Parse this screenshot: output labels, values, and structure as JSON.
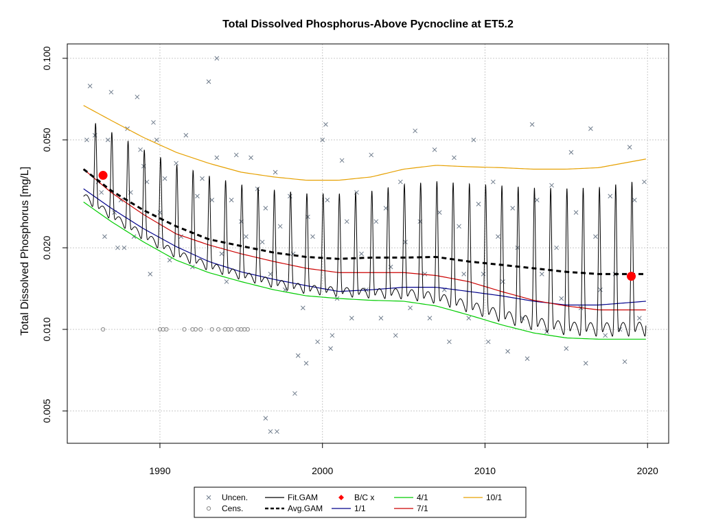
{
  "chart_data": {
    "type": "scatter",
    "title": "Total Dissolved Phosphorus-Above Pycnocline at ET5.2",
    "xlabel": "",
    "ylabel": "Total Dissolved Phosphorus [mg/L]",
    "y_scale": "log",
    "xlim": [
      1984.3,
      2021.3
    ],
    "ylim": [
      0.0038,
      0.113
    ],
    "x_ticks": [
      1990,
      2000,
      2010,
      2020
    ],
    "x_tick_labels": [
      "1990",
      "2000",
      "2010",
      "2020"
    ],
    "y_ticks": [
      0.005,
      0.01,
      0.02,
      0.05,
      0.1
    ],
    "y_tick_labels": [
      "0.005",
      "0.010",
      "0.020",
      "0.050",
      "0.100"
    ],
    "grid": true,
    "legend_position": "bottom",
    "legend": [
      {
        "label": "Uncen.",
        "kind": "x-marker",
        "color": "#6e7b8b"
      },
      {
        "label": "Cens.",
        "kind": "circle-marker",
        "color": "#888888"
      },
      {
        "label": "Fit.GAM",
        "kind": "line",
        "color": "#000000"
      },
      {
        "label": "Avg.GAM",
        "kind": "dashed-line",
        "color": "#000000"
      },
      {
        "label": "B/C x",
        "kind": "diamond-marker",
        "color": "#ff0000"
      },
      {
        "label": "1/1",
        "kind": "line",
        "color": "#00008b"
      },
      {
        "label": "4/1",
        "kind": "line",
        "color": "#00cc00"
      },
      {
        "label": "7/1",
        "kind": "line",
        "color": "#cc0000"
      },
      {
        "label": "10/1",
        "kind": "line",
        "color": "#e6a000"
      }
    ],
    "series": [
      {
        "name": "10/1",
        "color": "#e6a000",
        "x": [
          1985.3,
          1987,
          1989,
          1991,
          1993,
          1995,
          1997,
          1999,
          2001,
          2003,
          2005,
          2007,
          2009,
          2011,
          2013,
          2015,
          2017,
          2019.9
        ],
        "y": [
          0.067,
          0.059,
          0.051,
          0.045,
          0.041,
          0.038,
          0.0365,
          0.0355,
          0.0355,
          0.0365,
          0.039,
          0.0403,
          0.0398,
          0.0395,
          0.039,
          0.039,
          0.0395,
          0.0425
        ]
      },
      {
        "name": "7/1",
        "color": "#cc0000",
        "x": [
          1985.3,
          1987,
          1989,
          1991,
          1993,
          1995,
          1997,
          1999,
          2001,
          2003,
          2005,
          2007,
          2009,
          2011,
          2013,
          2015,
          2017,
          2019.9
        ],
        "y": [
          0.039,
          0.032,
          0.0265,
          0.0225,
          0.0205,
          0.019,
          0.0178,
          0.0168,
          0.0162,
          0.0162,
          0.0162,
          0.0158,
          0.015,
          0.0138,
          0.0128,
          0.0122,
          0.0118,
          0.0118
        ]
      },
      {
        "name": "1/1",
        "color": "#00008b",
        "x": [
          1985.3,
          1987,
          1989,
          1991,
          1993,
          1995,
          1997,
          1999,
          2001,
          2003,
          2005,
          2007,
          2009,
          2011,
          2013,
          2015,
          2017,
          2019.9
        ],
        "y": [
          0.033,
          0.028,
          0.0235,
          0.0202,
          0.0178,
          0.0163,
          0.0153,
          0.0145,
          0.0138,
          0.014,
          0.0143,
          0.0143,
          0.0138,
          0.0133,
          0.0127,
          0.0123,
          0.0123,
          0.0127
        ]
      },
      {
        "name": "4/1",
        "color": "#00cc00",
        "x": [
          1985.3,
          1987,
          1989,
          1991,
          1993,
          1995,
          1997,
          1999,
          2001,
          2003,
          2005,
          2007,
          2009,
          2011,
          2013,
          2015,
          2017,
          2019.9
        ],
        "y": [
          0.0295,
          0.025,
          0.021,
          0.018,
          0.0162,
          0.015,
          0.014,
          0.0133,
          0.013,
          0.0128,
          0.0127,
          0.0122,
          0.0113,
          0.0104,
          0.0097,
          0.0093,
          0.0092,
          0.0092
        ]
      },
      {
        "name": "Avg.GAM",
        "color": "#000000",
        "x": [
          1985.3,
          1987,
          1989,
          1991,
          1993,
          1995,
          1997,
          1999,
          2001,
          2003,
          2005,
          2007,
          2009,
          2011,
          2013,
          2015,
          2017,
          2019.9
        ],
        "y": [
          0.039,
          0.0325,
          0.0275,
          0.024,
          0.0215,
          0.0203,
          0.0192,
          0.0185,
          0.0182,
          0.0184,
          0.0184,
          0.0185,
          0.0178,
          0.0173,
          0.0168,
          0.0163,
          0.016,
          0.016
        ]
      },
      {
        "name": "Fit.GAM",
        "color": "#000000",
        "start": 1985.3,
        "end": 2019.9,
        "upper": "10/1",
        "lower": "4/1"
      }
    ],
    "bc_points": [
      {
        "x": 1986.5,
        "y": 0.037
      },
      {
        "x": 2019,
        "y": 0.0157
      }
    ],
    "censored": {
      "y": 0.01,
      "x": [
        1986.5,
        1990,
        1990.2,
        1990.4,
        1991.5,
        1992,
        1992.2,
        1992.5,
        1993.2,
        1993.6,
        1994,
        1994.2,
        1994.4,
        1994.8,
        1995,
        1995.2,
        1995.4
      ]
    },
    "uncensored": {
      "x": [
        1985.5,
        1985.7,
        1986.0,
        1986.2,
        1986.4,
        1986.6,
        1986.8,
        1987.0,
        1987.2,
        1987.4,
        1987.6,
        1987.8,
        1988.0,
        1988.2,
        1988.4,
        1988.6,
        1988.8,
        1989.0,
        1989.2,
        1989.4,
        1989.6,
        1989.8,
        1990.0,
        1990.3,
        1990.6,
        1991.0,
        1991.3,
        1991.6,
        1992.0,
        1992.3,
        1992.6,
        1993.0,
        1993.2,
        1993.5,
        1993.8,
        1994.1,
        1994.4,
        1994.7,
        1995.0,
        1995.3,
        1995.6,
        1996.0,
        1996.3,
        1996.5,
        1996.8,
        1997.1,
        1997.4,
        1997.7,
        1998.0,
        1998.2,
        1998.5,
        1998.8,
        1999.1,
        1999.4,
        1999.7,
        2000.0,
        2000.3,
        2000.6,
        2000.9,
        2001.2,
        2001.5,
        2001.8,
        2002.1,
        2002.4,
        2002.7,
        2003.0,
        2003.3,
        2003.6,
        2003.9,
        2004.2,
        2004.5,
        2004.8,
        2005.1,
        2005.4,
        2005.7,
        2006.0,
        2006.3,
        2006.6,
        2006.9,
        2007.2,
        2007.5,
        2007.8,
        2008.1,
        2008.4,
        2008.7,
        2009.0,
        2009.3,
        2009.6,
        2009.9,
        2010.2,
        2010.5,
        2010.8,
        2011.1,
        2011.4,
        2011.7,
        2012.0,
        2012.3,
        2012.6,
        2012.9,
        2013.2,
        2013.5,
        2013.8,
        2014.1,
        2014.4,
        2014.7,
        2015.0,
        2015.3,
        2015.6,
        2015.9,
        2016.2,
        2016.5,
        2016.8,
        2017.1,
        2017.4,
        2017.7,
        2018.0,
        2018.3,
        2018.6,
        2018.9,
        2019.2,
        2019.5,
        2019.8,
        1993.5,
        1996.5,
        1997.2,
        1996.8,
        1998.3,
        1999.0,
        2000.5,
        2000.2
      ],
      "y": [
        0.05,
        0.079,
        0.052,
        0.035,
        0.032,
        0.022,
        0.05,
        0.075,
        0.027,
        0.02,
        0.03,
        0.02,
        0.055,
        0.032,
        0.022,
        0.072,
        0.046,
        0.04,
        0.035,
        0.016,
        0.058,
        0.05,
        0.027,
        0.036,
        0.018,
        0.041,
        0.022,
        0.052,
        0.017,
        0.031,
        0.036,
        0.082,
        0.03,
        0.043,
        0.019,
        0.015,
        0.03,
        0.044,
        0.025,
        0.022,
        0.043,
        0.033,
        0.021,
        0.028,
        0.016,
        0.038,
        0.024,
        0.014,
        0.031,
        0.019,
        0.008,
        0.012,
        0.026,
        0.022,
        0.009,
        0.05,
        0.03,
        0.0095,
        0.013,
        0.042,
        0.025,
        0.011,
        0.032,
        0.019,
        0.014,
        0.044,
        0.025,
        0.011,
        0.028,
        0.017,
        0.0095,
        0.035,
        0.021,
        0.012,
        0.054,
        0.025,
        0.016,
        0.011,
        0.046,
        0.027,
        0.014,
        0.009,
        0.043,
        0.024,
        0.016,
        0.011,
        0.05,
        0.029,
        0.016,
        0.009,
        0.035,
        0.022,
        0.015,
        0.0083,
        0.028,
        0.02,
        0.011,
        0.0078,
        0.057,
        0.03,
        0.016,
        0.0098,
        0.034,
        0.02,
        0.013,
        0.0085,
        0.045,
        0.027,
        0.012,
        0.0075,
        0.055,
        0.022,
        0.014,
        0.0095,
        0.031,
        0.016,
        0.01,
        0.0076,
        0.047,
        0.03,
        0.011,
        0.035,
        0.1,
        0.0047,
        0.0042,
        0.0042,
        0.0058,
        0.0075,
        0.0085,
        0.057
      ]
    }
  }
}
